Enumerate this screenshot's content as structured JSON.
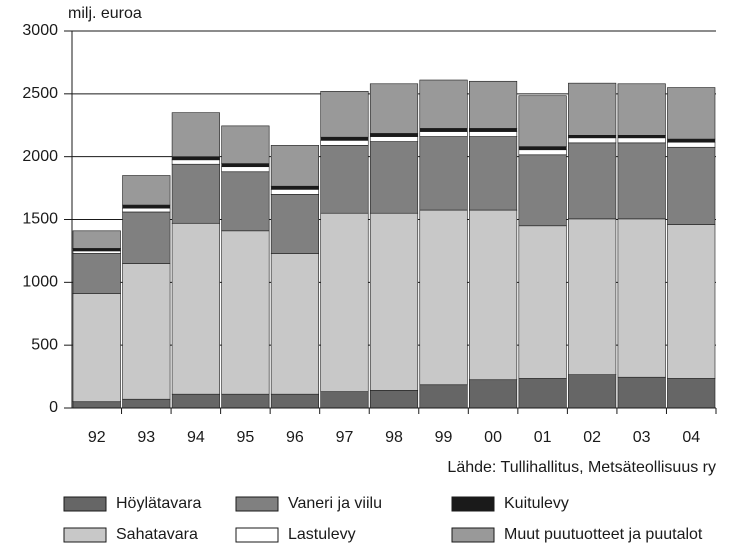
{
  "chart_data": {
    "type": "stacked_bar",
    "y_label": "milj. euroa",
    "source": "Lähde: Tullihallitus, Metsäteollisuus ry",
    "categories": [
      "92",
      "93",
      "94",
      "95",
      "96",
      "97",
      "98",
      "99",
      "00",
      "01",
      "02",
      "03",
      "04"
    ],
    "series": [
      {
        "name": "Höylätavara",
        "color": "#666666",
        "values": [
          50,
          70,
          110,
          110,
          110,
          130,
          140,
          185,
          225,
          235,
          265,
          245,
          235
        ]
      },
      {
        "name": "Sahatavara",
        "color": "#c8c8c8",
        "values": [
          860,
          1080,
          1360,
          1300,
          1120,
          1420,
          1410,
          1390,
          1350,
          1215,
          1240,
          1260,
          1225
        ]
      },
      {
        "name": "Vaneri ja viilu",
        "color": "#808080",
        "values": [
          320,
          410,
          470,
          470,
          470,
          540,
          570,
          585,
          585,
          565,
          605,
          605,
          615
        ]
      },
      {
        "name": "Lastulevy",
        "color": "#ffffff",
        "values": [
          20,
          30,
          35,
          40,
          40,
          40,
          40,
          40,
          40,
          40,
          40,
          40,
          40
        ]
      },
      {
        "name": "Kuitulevy",
        "color": "#1a1a1a",
        "values": [
          20,
          25,
          25,
          25,
          25,
          25,
          25,
          25,
          25,
          25,
          20,
          20,
          25
        ]
      },
      {
        "name": "Muut puutuotteet ja puutalot",
        "color": "#999999",
        "values": [
          140,
          235,
          350,
          300,
          325,
          365,
          395,
          385,
          375,
          405,
          415,
          410,
          410
        ]
      }
    ],
    "ylim": [
      0,
      3000
    ],
    "yticks": [
      0,
      500,
      1000,
      1500,
      2000,
      2500,
      3000
    ],
    "grid": true
  }
}
